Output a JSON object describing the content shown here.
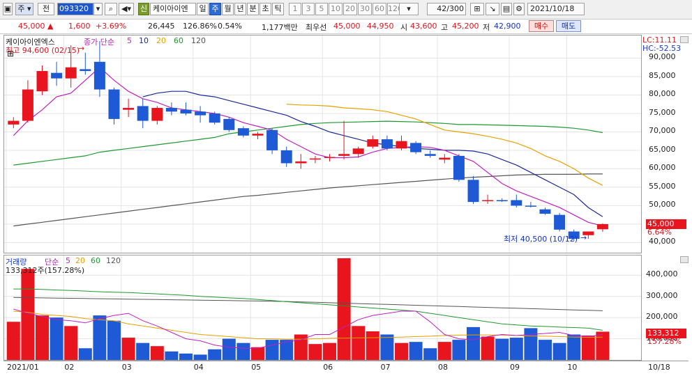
{
  "toolbar": {
    "mode": "주",
    "prev_label": "전",
    "code": "093320",
    "name_badge": "신",
    "name": "케이아이엔",
    "periods": [
      "일",
      "주",
      "월",
      "년",
      "분",
      "초",
      "틱"
    ],
    "period_selected": "주",
    "units": [
      "1",
      "3",
      "5",
      "10",
      "20",
      "30",
      "60",
      "120"
    ],
    "count": "42/300",
    "date": "2021/10/18"
  },
  "quote": {
    "price": "45,000",
    "change": "1,600",
    "change_pct": "+3.69%",
    "volume": "26,445",
    "volume_ratio": "126.86%",
    "turnover": "0.54%",
    "amount": "1,177백만",
    "best_ask_label": "최우선",
    "best_ask": "45,000",
    "best_bid": "44,950",
    "open_label": "시",
    "open": "43,600",
    "high_label": "고",
    "high": "45,200",
    "low_label": "저",
    "low": "42,900",
    "buy_label": "매수",
    "sell_label": "매도"
  },
  "price_pane": {
    "legend_name": "케이아이엔엑스",
    "legend_ma": "종가 단순",
    "ma_periods": [
      "5",
      "10",
      "20",
      "60",
      "120"
    ],
    "ma_colors": [
      "#c020c0",
      "#1a2a9a",
      "#e8a000",
      "#1e9a30",
      "#555555"
    ],
    "max_note": "최고 94,600 (02/15)",
    "min_note": "최저 40,500 (10/12)",
    "lc": "LC:11.11",
    "hc": "HC:-52.53",
    "y_ticks": [
      "90,000",
      "85,000",
      "80,000",
      "75,000",
      "70,000",
      "65,000",
      "60,000",
      "55,000",
      "50,000",
      "45,000",
      "40,000"
    ],
    "current_label": "45,000",
    "current_pct": "6.64%"
  },
  "volume_pane": {
    "legend_name": "거래량",
    "legend_ma": "단순",
    "ma_periods": [
      "5",
      "20",
      "60",
      "120"
    ],
    "current_text": "133,312주(157.28%)",
    "y_ticks": [
      "400,000",
      "300,000",
      "200,000",
      "100,000"
    ],
    "current_label": "133,312",
    "current_pct": "157.28%"
  },
  "x_labels": [
    "2021/01",
    "02",
    "03",
    "04",
    "05",
    "06",
    "07",
    "08",
    "09",
    "10",
    "10/18"
  ],
  "chart_data": {
    "type": "candlestick",
    "ylim": [
      38000,
      95000
    ],
    "volume_ylim": [
      0,
      480000
    ],
    "candles": [
      {
        "o": 72000,
        "h": 74000,
        "l": 71000,
        "c": 73000
      },
      {
        "o": 73000,
        "h": 84000,
        "l": 72500,
        "c": 81500
      },
      {
        "o": 81000,
        "h": 88000,
        "l": 80000,
        "c": 86500
      },
      {
        "o": 86000,
        "h": 89000,
        "l": 82500,
        "c": 84500
      },
      {
        "o": 84500,
        "h": 93500,
        "l": 82000,
        "c": 87500
      },
      {
        "o": 87000,
        "h": 91500,
        "l": 85500,
        "c": 86500
      },
      {
        "o": 89000,
        "h": 94600,
        "l": 79500,
        "c": 81500
      },
      {
        "o": 81500,
        "h": 82000,
        "l": 72000,
        "c": 73500
      },
      {
        "o": 76000,
        "h": 79000,
        "l": 74000,
        "c": 76500
      },
      {
        "o": 77000,
        "h": 79000,
        "l": 71000,
        "c": 73000
      },
      {
        "o": 73000,
        "h": 77000,
        "l": 72000,
        "c": 76500
      },
      {
        "o": 76500,
        "h": 78000,
        "l": 74500,
        "c": 75500
      },
      {
        "o": 76000,
        "h": 78000,
        "l": 74500,
        "c": 75000
      },
      {
        "o": 75500,
        "h": 77000,
        "l": 72500,
        "c": 74500
      },
      {
        "o": 75000,
        "h": 75500,
        "l": 72000,
        "c": 72500
      },
      {
        "o": 73500,
        "h": 74000,
        "l": 70000,
        "c": 70500
      },
      {
        "o": 71000,
        "h": 71500,
        "l": 68500,
        "c": 69000
      },
      {
        "o": 69000,
        "h": 70000,
        "l": 68000,
        "c": 69500
      },
      {
        "o": 70500,
        "h": 71000,
        "l": 64000,
        "c": 65000
      },
      {
        "o": 65000,
        "h": 66000,
        "l": 60500,
        "c": 61500
      },
      {
        "o": 61500,
        "h": 64000,
        "l": 60000,
        "c": 62000
      },
      {
        "o": 62500,
        "h": 63500,
        "l": 61500,
        "c": 62800
      },
      {
        "o": 63000,
        "h": 64000,
        "l": 62000,
        "c": 63200
      },
      {
        "o": 63500,
        "h": 73000,
        "l": 62500,
        "c": 64000
      },
      {
        "o": 64000,
        "h": 66000,
        "l": 63000,
        "c": 65500
      },
      {
        "o": 66000,
        "h": 69000,
        "l": 65500,
        "c": 68000
      },
      {
        "o": 68000,
        "h": 69000,
        "l": 65000,
        "c": 65500
      },
      {
        "o": 65500,
        "h": 69000,
        "l": 65000,
        "c": 67500
      },
      {
        "o": 67000,
        "h": 67500,
        "l": 64000,
        "c": 64500
      },
      {
        "o": 64000,
        "h": 65000,
        "l": 63000,
        "c": 63500
      },
      {
        "o": 62500,
        "h": 64000,
        "l": 61500,
        "c": 63000
      },
      {
        "o": 63500,
        "h": 64000,
        "l": 56500,
        "c": 57000
      },
      {
        "o": 57000,
        "h": 58000,
        "l": 50500,
        "c": 51000
      },
      {
        "o": 51500,
        "h": 53000,
        "l": 50500,
        "c": 51500
      },
      {
        "o": 51500,
        "h": 52000,
        "l": 51000,
        "c": 51200
      },
      {
        "o": 51500,
        "h": 53000,
        "l": 49500,
        "c": 50000
      },
      {
        "o": 50000,
        "h": 51000,
        "l": 49500,
        "c": 49800
      },
      {
        "o": 49000,
        "h": 49500,
        "l": 47500,
        "c": 47800
      },
      {
        "o": 47500,
        "h": 48000,
        "l": 43000,
        "c": 43500
      },
      {
        "o": 43000,
        "h": 43500,
        "l": 40500,
        "c": 41000
      },
      {
        "o": 42000,
        "h": 43000,
        "l": 41000,
        "c": 43000
      },
      {
        "o": 43600,
        "h": 45200,
        "l": 42900,
        "c": 45000
      }
    ],
    "volume": [
      180000,
      430000,
      210000,
      200000,
      160000,
      55000,
      210000,
      185000,
      105000,
      80000,
      65000,
      40000,
      30000,
      25000,
      50000,
      100000,
      80000,
      60000,
      95000,
      95000,
      120000,
      75000,
      80000,
      480000,
      160000,
      135000,
      120000,
      80000,
      85000,
      55000,
      85000,
      95000,
      155000,
      110000,
      100000,
      105000,
      150000,
      95000,
      80000,
      120000,
      115000,
      133312
    ],
    "ma5": [
      69000,
      73000,
      76000,
      79500,
      80500,
      84000,
      87500,
      84000,
      81000,
      79000,
      78000,
      76500,
      76000,
      75500,
      75000,
      74000,
      72500,
      71500,
      70500,
      68000,
      66000,
      64000,
      63000,
      63000,
      63200,
      64500,
      65500,
      65800,
      66000,
      65800,
      65000,
      63500,
      62000,
      59000,
      56000,
      54000,
      52500,
      51000,
      49500,
      47500,
      45500,
      44500
    ],
    "ma10": [
      null,
      null,
      null,
      null,
      null,
      null,
      null,
      null,
      null,
      79500,
      80500,
      81000,
      81000,
      80000,
      79500,
      78500,
      77500,
      76500,
      75500,
      74500,
      72800,
      71500,
      70000,
      69000,
      68000,
      67000,
      66500,
      66000,
      65500,
      65300,
      65000,
      65000,
      64800,
      64000,
      62500,
      61000,
      59000,
      57000,
      55000,
      53000,
      49500,
      47000
    ],
    "ma20": [
      null,
      null,
      null,
      null,
      null,
      null,
      null,
      null,
      null,
      null,
      null,
      null,
      null,
      null,
      null,
      null,
      null,
      null,
      null,
      77500,
      77300,
      77200,
      77000,
      76500,
      76300,
      76000,
      75500,
      74500,
      73500,
      72000,
      70500,
      70000,
      69500,
      68800,
      68000,
      67000,
      65500,
      63500,
      62000,
      60000,
      57500,
      55500
    ],
    "ma60": [
      61000,
      61500,
      62000,
      62500,
      63000,
      63500,
      64500,
      65000,
      65500,
      66000,
      66500,
      67000,
      67500,
      68000,
      68500,
      69500,
      70000,
      70500,
      71000,
      71500,
      72000,
      72300,
      72500,
      72600,
      72700,
      72800,
      72900,
      72800,
      72700,
      72500,
      72300,
      72000,
      72000,
      71900,
      71800,
      71700,
      71600,
      71500,
      71300,
      71000,
      70500,
      69800
    ],
    "ma120": [
      44500,
      45000,
      45500,
      46000,
      46500,
      47000,
      47500,
      48000,
      48500,
      49000,
      49500,
      50000,
      50500,
      51000,
      51500,
      52000,
      52500,
      52800,
      53200,
      53600,
      54000,
      54400,
      54800,
      55100,
      55400,
      55700,
      56000,
      56300,
      56600,
      56900,
      57200,
      57500,
      57700,
      57900,
      58100,
      58300,
      58400,
      58500,
      58500,
      58500,
      58600,
      58600
    ],
    "vol_ma5": [
      240000,
      220000,
      205000,
      190000,
      185000,
      175000,
      195000,
      210000,
      220000,
      185000,
      160000,
      130000,
      100000,
      90000,
      70000,
      60000,
      55000,
      55000,
      70000,
      85000,
      95000,
      120000,
      120000,
      155000,
      190000,
      210000,
      220000,
      230000,
      230000,
      180000,
      120000,
      100000,
      95000,
      110000,
      120000,
      115000,
      120000,
      125000,
      130000,
      115000,
      110000,
      120000
    ],
    "vol_ma20": [
      230000,
      225000,
      215000,
      210000,
      205000,
      195000,
      190000,
      185000,
      170000,
      160000,
      150000,
      140000,
      130000,
      120000,
      115000,
      110000,
      105000,
      100000,
      100000,
      98000,
      98000,
      100000,
      102000,
      103000,
      104000,
      105000,
      106000,
      108000,
      110000,
      112000,
      115000,
      117000,
      118000,
      118000,
      117000,
      115000,
      113000,
      112000,
      110000,
      108000,
      107000,
      108000
    ],
    "vol_ma60": [
      335000,
      335000,
      333000,
      330000,
      328000,
      325000,
      322000,
      320000,
      318000,
      315000,
      312000,
      308000,
      305000,
      300000,
      297000,
      293000,
      290000,
      285000,
      280000,
      275000,
      270000,
      265000,
      260000,
      255000,
      250000,
      245000,
      240000,
      235000,
      230000,
      220000,
      210000,
      200000,
      190000,
      180000,
      170000,
      165000,
      160000,
      158000,
      155000,
      153000,
      150000,
      140000
    ],
    "vol_ma120": [
      295000,
      294000,
      293000,
      292000,
      291000,
      290000,
      289000,
      288000,
      287000,
      286000,
      285000,
      284000,
      283000,
      282000,
      281000,
      280000,
      279000,
      278000,
      277000,
      276000,
      274000,
      272000,
      270000,
      268000,
      266000,
      264000,
      262000,
      260000,
      258000,
      256000,
      254000,
      252000,
      250000,
      248000,
      246000,
      244000,
      242000,
      240000,
      238000,
      236000,
      234000,
      232000
    ]
  }
}
